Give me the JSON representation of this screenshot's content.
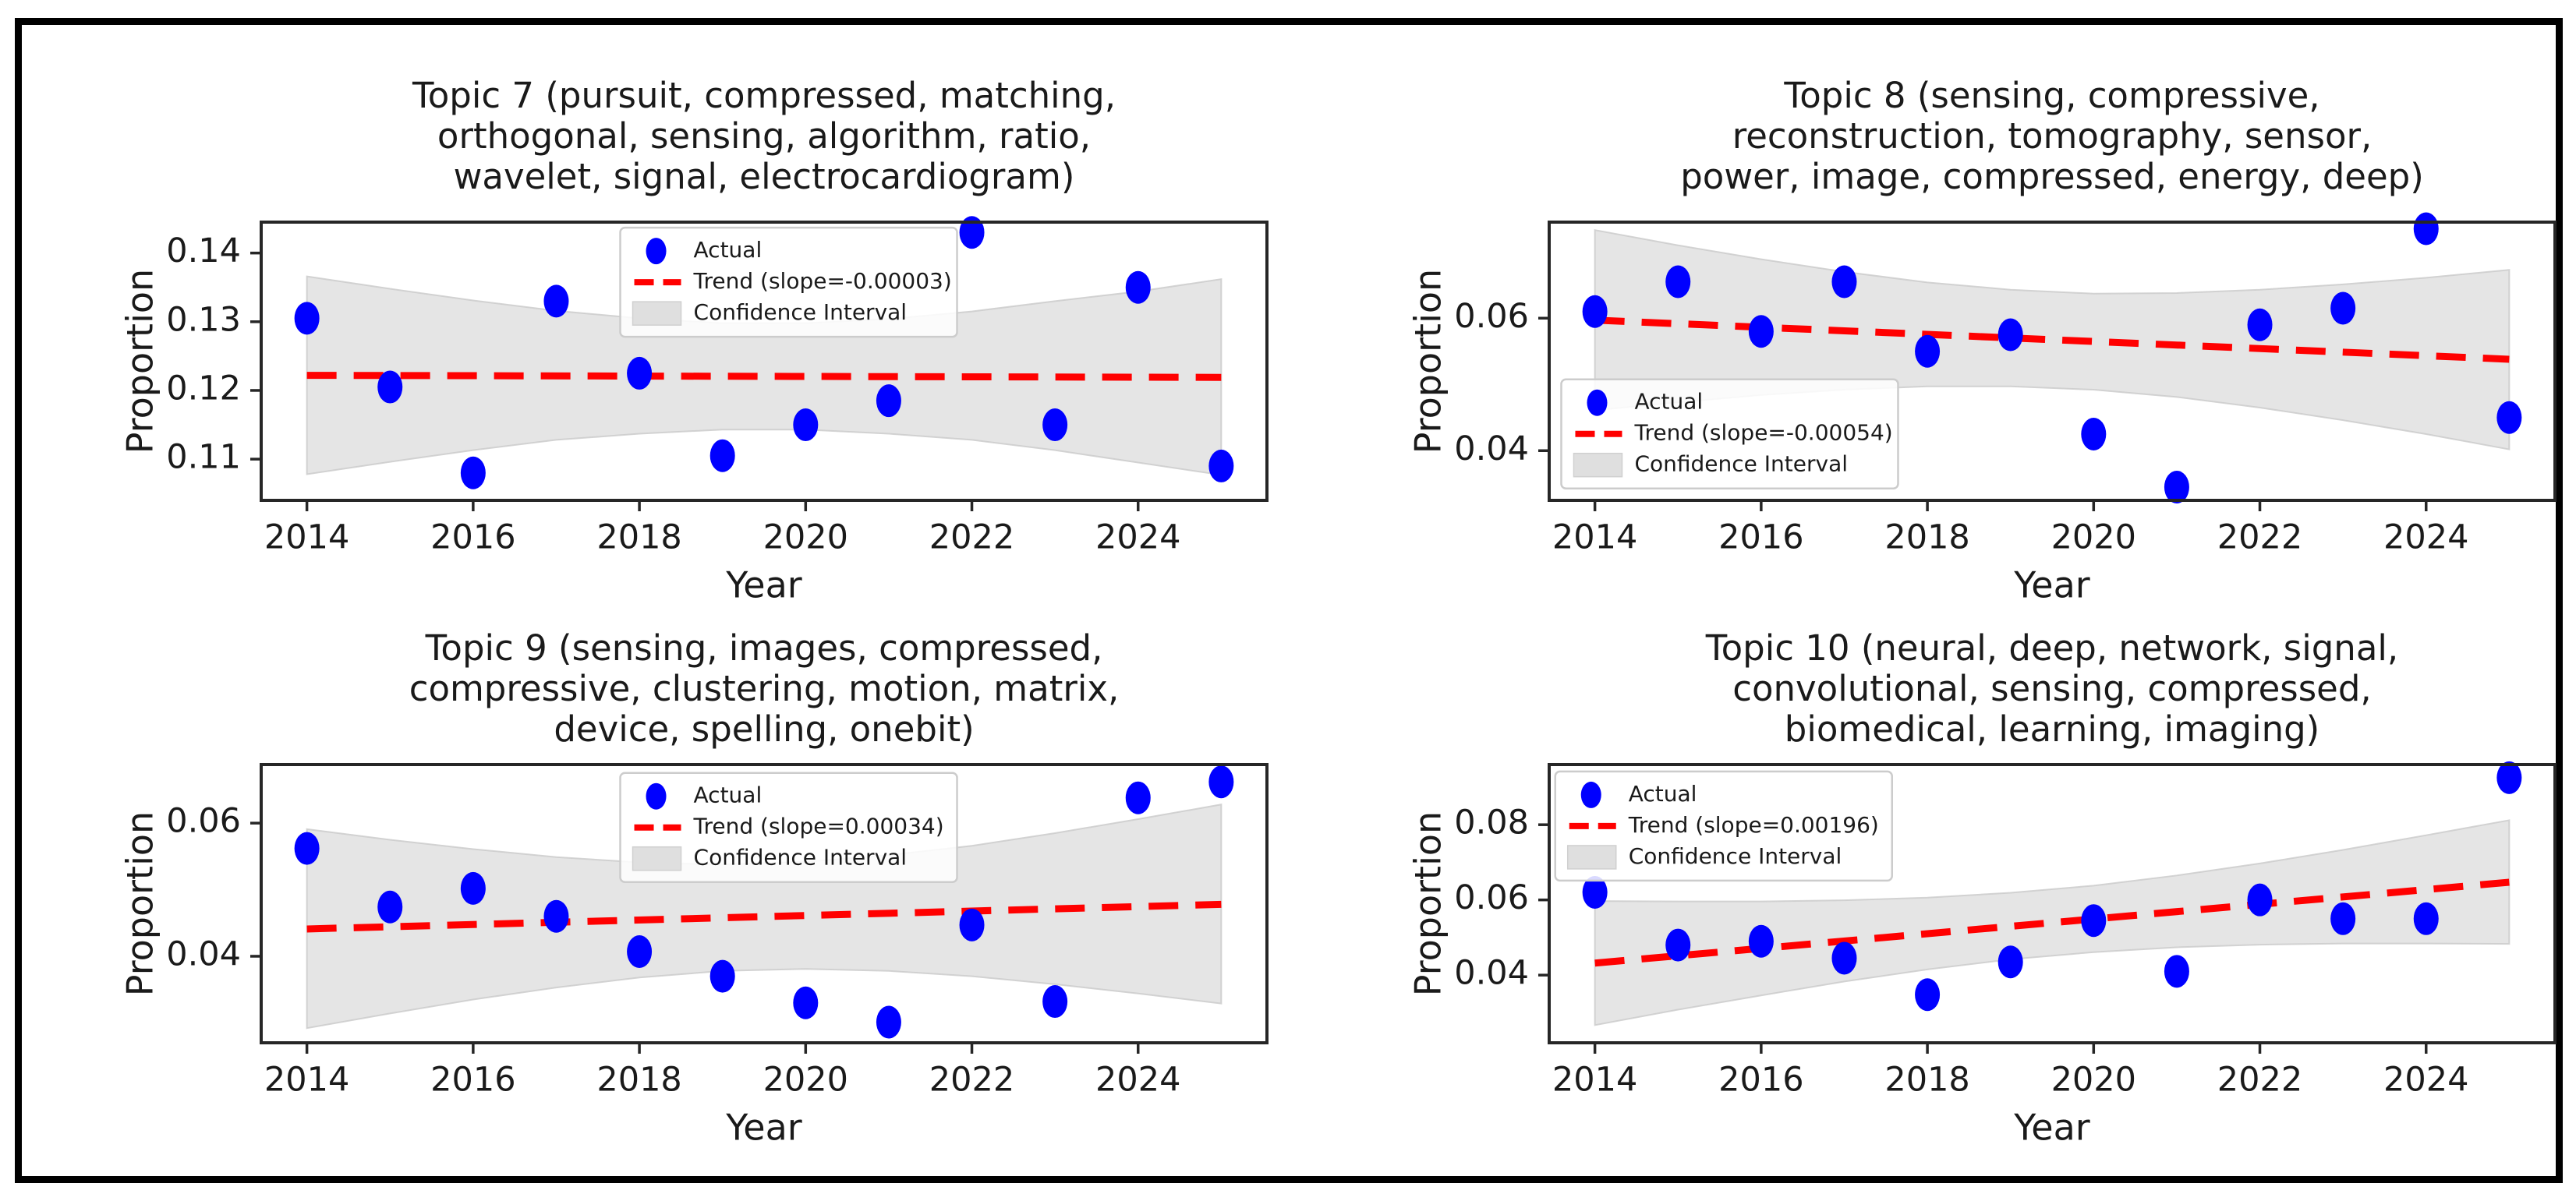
{
  "figure": {
    "background": "#ffffff",
    "border_color": "#000000",
    "colors": {
      "points": "#0000ff",
      "trend": "#ff0000",
      "ci": "#dcdcdc",
      "ci_edge": "#c9c9c9",
      "spine": "#262626",
      "text": "#1a1a1a",
      "legend_border": "#cccccc"
    }
  },
  "chart_data": [
    {
      "id": "topic-7",
      "type": "scatter",
      "title_lines": [
        "Topic 7 (pursuit, compressed, matching,",
        "orthogonal, sensing, algorithm, ratio,",
        "wavelet, signal, electrocardiogram)"
      ],
      "xlabel": "Year",
      "ylabel": "Proportion",
      "x": [
        2014,
        2015,
        2016,
        2017,
        2018,
        2019,
        2020,
        2021,
        2022,
        2023,
        2024,
        2025
      ],
      "actual_label": "Actual",
      "actual": [
        0.1305,
        0.1205,
        0.108,
        0.133,
        0.1225,
        0.1105,
        0.115,
        0.1185,
        0.143,
        0.115,
        0.135,
        0.109
      ],
      "trend": {
        "label": "Trend (slope=-0.00003)",
        "slope": -3e-05,
        "y_start": 0.1222,
        "y_end": 0.1219
      },
      "ci": {
        "label": "Confidence Interval",
        "lower": [
          0.1078,
          0.1096,
          0.1113,
          0.1128,
          0.1137,
          0.1143,
          0.1143,
          0.1137,
          0.1128,
          0.1113,
          0.1095,
          0.1077
        ],
        "upper": [
          0.1366,
          0.1348,
          0.1331,
          0.1316,
          0.1305,
          0.1298,
          0.1298,
          0.1304,
          0.1315,
          0.133,
          0.1344,
          0.1362
        ]
      },
      "xlim": [
        2013.45,
        2025.55
      ],
      "ylim": [
        0.104,
        0.1445
      ],
      "xtick_values": [
        2014,
        2016,
        2018,
        2020,
        2022,
        2024
      ],
      "xtick_labels": [
        "2014",
        "2016",
        "2018",
        "2020",
        "2022",
        "2024"
      ],
      "ytick_values": [
        0.11,
        0.12,
        0.13,
        0.14
      ],
      "ytick_labels": [
        "0.11",
        "0.12",
        "0.13",
        "0.14"
      ],
      "legend_pos": {
        "x": 0.357,
        "y": 0.02
      }
    },
    {
      "id": "topic-8",
      "type": "scatter",
      "title_lines": [
        "Topic 8 (sensing, compressive,",
        "reconstruction, tomography, sensor,",
        "power, image, compressed, energy, deep)"
      ],
      "xlabel": "Year",
      "ylabel": "Proportion",
      "x": [
        2014,
        2015,
        2016,
        2017,
        2018,
        2019,
        2020,
        2021,
        2022,
        2023,
        2024,
        2025
      ],
      "actual_label": "Actual",
      "actual": [
        0.061,
        0.0655,
        0.058,
        0.0655,
        0.055,
        0.0575,
        0.0425,
        0.0345,
        0.059,
        0.0615,
        0.0735,
        0.045
      ],
      "trend": {
        "label": "Trend (slope=-0.00054)",
        "slope": -0.00054,
        "y_start": 0.0597,
        "y_end": 0.0538
      },
      "ci": {
        "label": "Confidence Interval",
        "lower": [
          0.0461,
          0.0473,
          0.0484,
          0.0492,
          0.0497,
          0.0497,
          0.0492,
          0.0481,
          0.0465,
          0.0446,
          0.0425,
          0.0402
        ],
        "upper": [
          0.0733,
          0.071,
          0.0689,
          0.067,
          0.0654,
          0.0643,
          0.0637,
          0.0638,
          0.0643,
          0.0651,
          0.0661,
          0.0673
        ]
      },
      "xlim": [
        2013.45,
        2025.55
      ],
      "ylim": [
        0.0325,
        0.0745
      ],
      "xtick_values": [
        2014,
        2016,
        2018,
        2020,
        2022,
        2024
      ],
      "xtick_labels": [
        "2014",
        "2016",
        "2018",
        "2020",
        "2022",
        "2024"
      ],
      "ytick_values": [
        0.04,
        0.06
      ],
      "ytick_labels": [
        "0.04",
        "0.06"
      ],
      "legend_pos": {
        "x": 0.012,
        "y": 0.565
      }
    },
    {
      "id": "topic-9",
      "type": "scatter",
      "title_lines": [
        "Topic 9 (sensing, images, compressed,",
        "compressive, clustering, motion, matrix,",
        "device, spelling, onebit)"
      ],
      "xlabel": "Year",
      "ylabel": "Proportion",
      "x": [
        2014,
        2015,
        2016,
        2017,
        2018,
        2019,
        2020,
        2021,
        2022,
        2023,
        2024,
        2025
      ],
      "actual_label": "Actual",
      "actual": [
        0.0562,
        0.0474,
        0.0502,
        0.046,
        0.0407,
        0.037,
        0.033,
        0.0301,
        0.0447,
        0.0332,
        0.0638,
        0.0662
      ],
      "trend": {
        "label": "Trend (slope=0.00034)",
        "slope": 0.00034,
        "y_start": 0.0441,
        "y_end": 0.0478
      },
      "ci": {
        "label": "Confidence Interval",
        "lower": [
          0.0292,
          0.0314,
          0.0335,
          0.0353,
          0.0368,
          0.0378,
          0.0381,
          0.0378,
          0.037,
          0.0358,
          0.0344,
          0.0329
        ],
        "upper": [
          0.0591,
          0.0575,
          0.0561,
          0.0549,
          0.0541,
          0.0538,
          0.0542,
          0.0552,
          0.0566,
          0.0585,
          0.0606,
          0.0628
        ]
      },
      "xlim": [
        2013.45,
        2025.55
      ],
      "ylim": [
        0.027,
        0.0688
      ],
      "xtick_values": [
        2014,
        2016,
        2018,
        2020,
        2022,
        2024
      ],
      "xtick_labels": [
        "2014",
        "2016",
        "2018",
        "2020",
        "2022",
        "2024"
      ],
      "ytick_values": [
        0.04,
        0.06
      ],
      "ytick_labels": [
        "0.04",
        "0.06"
      ],
      "legend_pos": {
        "x": 0.357,
        "y": 0.03
      }
    },
    {
      "id": "topic-10",
      "type": "scatter",
      "title_lines": [
        "Topic 10 (neural, deep, network, signal,",
        "convolutional, sensing, compressed,",
        "biomedical, learning, imaging)"
      ],
      "xlabel": "Year",
      "ylabel": "Proportion",
      "x": [
        2014,
        2015,
        2016,
        2017,
        2018,
        2019,
        2020,
        2021,
        2022,
        2023,
        2024,
        2025
      ],
      "actual_label": "Actual",
      "actual": [
        0.062,
        0.048,
        0.049,
        0.0445,
        0.0348,
        0.0435,
        0.0545,
        0.041,
        0.06,
        0.055,
        0.055,
        0.0925
      ],
      "trend": {
        "label": "Trend (slope=0.00196)",
        "slope": 0.00196,
        "y_start": 0.0432,
        "y_end": 0.0647
      },
      "ci": {
        "label": "Confidence Interval",
        "lower": [
          0.0267,
          0.0308,
          0.0346,
          0.0383,
          0.0415,
          0.0442,
          0.0461,
          0.0474,
          0.0481,
          0.0484,
          0.0484,
          0.0483
        ],
        "upper": [
          0.0597,
          0.0596,
          0.0596,
          0.0599,
          0.0606,
          0.0619,
          0.0638,
          0.0665,
          0.0697,
          0.0733,
          0.0772,
          0.0812
        ]
      },
      "xlim": [
        2013.45,
        2025.55
      ],
      "ylim": [
        0.022,
        0.096
      ],
      "xtick_values": [
        2014,
        2016,
        2018,
        2020,
        2022,
        2024
      ],
      "xtick_labels": [
        "2014",
        "2016",
        "2018",
        "2020",
        "2022",
        "2024"
      ],
      "ytick_values": [
        0.04,
        0.06,
        0.08
      ],
      "ytick_labels": [
        "0.04",
        "0.06",
        "0.08"
      ],
      "legend_pos": {
        "x": 0.006,
        "y": 0.025
      }
    }
  ]
}
